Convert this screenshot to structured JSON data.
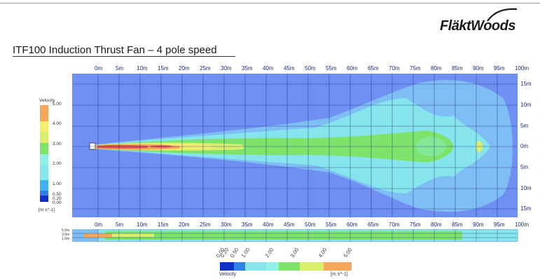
{
  "header": {
    "brand": "FläktWoods",
    "title": "ITF100 Induction Thrust Fan – 4 pole speed"
  },
  "top_x_labels": [
    "0m",
    "5m",
    "10m",
    "15m",
    "20m",
    "25m",
    "30m",
    "35m",
    "40m",
    "45m",
    "50m",
    "55m",
    "60m",
    "65m",
    "70m",
    "75m",
    "80m",
    "85m",
    "90m",
    "95m",
    "100m"
  ],
  "side_x_labels": [
    "0m",
    "5m",
    "10m",
    "15m",
    "20m",
    "25m",
    "30m",
    "35m",
    "40m",
    "45m",
    "50m",
    "55m",
    "60m",
    "65m",
    "70m",
    "75m",
    "80m",
    "85m",
    "90m",
    "95m",
    "100m"
  ],
  "y_labels": [
    "15m",
    "10m",
    "5m",
    "0m",
    "5m",
    "10m",
    "15m"
  ],
  "legend_left": {
    "title": "Velocity",
    "ticks": [
      "5.00",
      "4.00",
      "3.00",
      "2.00",
      "1.00",
      "0.50",
      "0.20",
      "0.00"
    ],
    "unit": "[m s^-1]"
  },
  "side_labels": [
    "5.0m",
    "3.0m",
    "1.0m"
  ],
  "legend_bottom": {
    "title": "Velocity",
    "ticks": [
      "0.00",
      "0.20",
      "0.50",
      "1.00",
      "2.00",
      "3.00",
      "4.00",
      "5.00"
    ],
    "unit": "[m s^-1]"
  },
  "colors": {
    "background": "#6f8ff2",
    "blue2": "#7fbdf5",
    "cyan": "#86e4ed",
    "light_cyan": "#8ff0e6",
    "green": "#7de36a",
    "yellow_green": "#d9ef6b",
    "yellow": "#f2ef6b",
    "orange": "#f5a85c",
    "red": "#e85050",
    "grid": "#20307a"
  }
}
